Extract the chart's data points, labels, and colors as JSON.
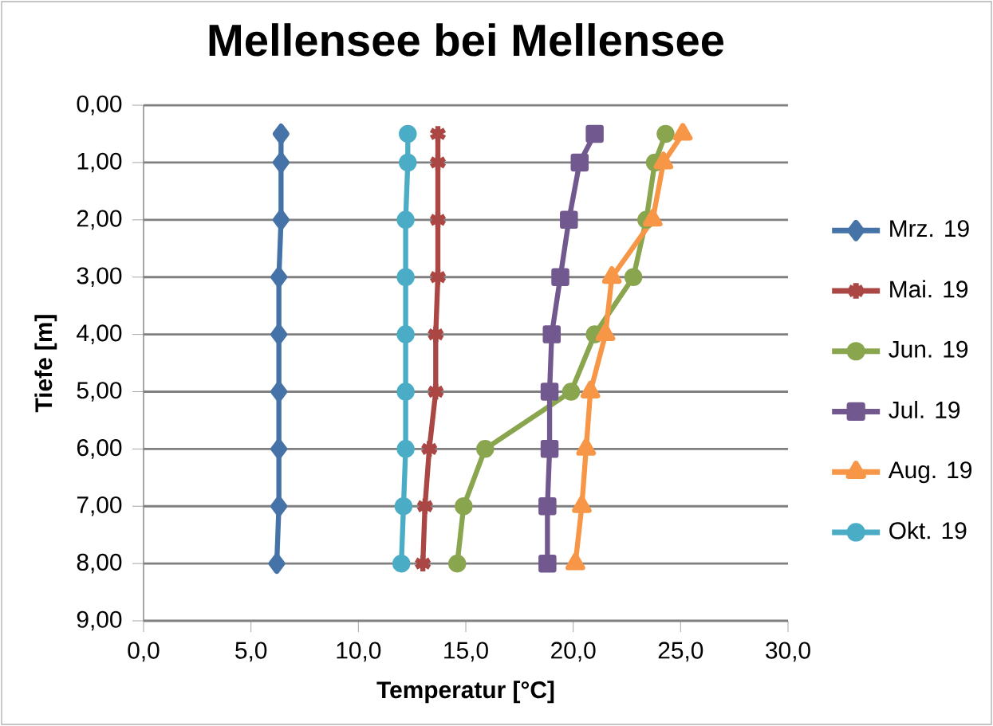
{
  "chart_data": {
    "type": "line",
    "title": "Mellensee bei Mellensee",
    "xlabel": "Temperatur [°C]",
    "ylabel": "Tiefe [m]",
    "xlim": [
      0,
      30
    ],
    "xticks": [
      {
        "value": 0,
        "label": "0,0"
      },
      {
        "value": 5,
        "label": "5,0"
      },
      {
        "value": 10,
        "label": "10,0"
      },
      {
        "value": 15,
        "label": "15,0"
      },
      {
        "value": 20,
        "label": "20,0"
      },
      {
        "value": 25,
        "label": "25,0"
      },
      {
        "value": 30,
        "label": "30,0"
      }
    ],
    "ylim": [
      9,
      0
    ],
    "yticks": [
      {
        "value": 0,
        "label": "0,00"
      },
      {
        "value": 1,
        "label": "1,00"
      },
      {
        "value": 2,
        "label": "2,00"
      },
      {
        "value": 3,
        "label": "3,00"
      },
      {
        "value": 4,
        "label": "4,00"
      },
      {
        "value": 5,
        "label": "5,00"
      },
      {
        "value": 6,
        "label": "6,00"
      },
      {
        "value": 7,
        "label": "7,00"
      },
      {
        "value": 8,
        "label": "8,00"
      },
      {
        "value": 9,
        "label": "9,00"
      }
    ],
    "grid": "y",
    "legend": "right",
    "series": [
      {
        "name": "Mrz. 19",
        "color": "#4572a7",
        "marker": "diamond",
        "x": [
          6.4,
          6.4,
          6.4,
          6.3,
          6.3,
          6.3,
          6.3,
          6.3,
          6.2
        ],
        "values": [
          0.5,
          1,
          2,
          3,
          4,
          5,
          6,
          7,
          8
        ]
      },
      {
        "name": "Mai. 19",
        "color": "#aa4643",
        "marker": "cross",
        "x": [
          13.7,
          13.7,
          13.7,
          13.7,
          13.6,
          13.6,
          13.3,
          13.1,
          13.0
        ],
        "values": [
          0.5,
          1,
          2,
          3,
          4,
          5,
          6,
          7,
          8
        ]
      },
      {
        "name": "Jun. 19",
        "color": "#89a54e",
        "marker": "circle",
        "x": [
          24.3,
          23.8,
          23.4,
          22.8,
          21.0,
          19.9,
          15.9,
          14.9,
          14.6
        ],
        "values": [
          0.5,
          1,
          2,
          3,
          4,
          5,
          6,
          7,
          8
        ]
      },
      {
        "name": "Jul. 19",
        "color": "#71588f",
        "marker": "square",
        "x": [
          21.0,
          20.3,
          19.8,
          19.4,
          19.0,
          18.9,
          18.9,
          18.8,
          18.8
        ],
        "values": [
          0.5,
          1,
          2,
          3,
          4,
          5,
          6,
          7,
          8
        ]
      },
      {
        "name": "Aug. 19",
        "color": "#f79646",
        "marker": "triangle",
        "x": [
          25.1,
          24.2,
          23.7,
          21.8,
          21.5,
          20.8,
          20.6,
          20.4,
          20.1
        ],
        "values": [
          0.5,
          1,
          2,
          3,
          4,
          5,
          6,
          7,
          8
        ]
      },
      {
        "name": "Okt. 19",
        "color": "#4bacc6",
        "marker": "circle",
        "x": [
          12.3,
          12.3,
          12.2,
          12.2,
          12.2,
          12.2,
          12.2,
          12.1,
          12.0
        ],
        "values": [
          0.5,
          1,
          2,
          3,
          4,
          5,
          6,
          7,
          8
        ]
      }
    ]
  }
}
